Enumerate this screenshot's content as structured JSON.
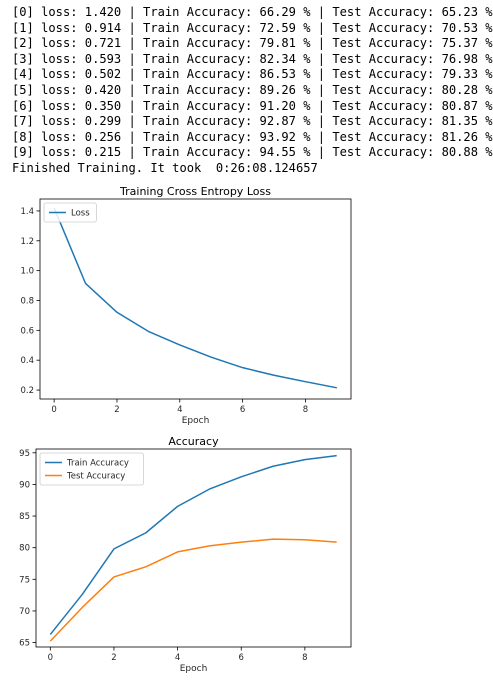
{
  "log": {
    "lines": [
      "[0] loss: 1.420 | Train Accuracy: 66.29 % | Test Accuracy: 65.23 %",
      "[1] loss: 0.914 | Train Accuracy: 72.59 % | Test Accuracy: 70.53 %",
      "[2] loss: 0.721 | Train Accuracy: 79.81 % | Test Accuracy: 75.37 %",
      "[3] loss: 0.593 | Train Accuracy: 82.34 % | Test Accuracy: 76.98 %",
      "[4] loss: 0.502 | Train Accuracy: 86.53 % | Test Accuracy: 79.33 %",
      "[5] loss: 0.420 | Train Accuracy: 89.26 % | Test Accuracy: 80.28 %",
      "[6] loss: 0.350 | Train Accuracy: 91.20 % | Test Accuracy: 80.87 %",
      "[7] loss: 0.299 | Train Accuracy: 92.87 % | Test Accuracy: 81.35 %",
      "[8] loss: 0.256 | Train Accuracy: 93.92 % | Test Accuracy: 81.26 %",
      "[9] loss: 0.215 | Train Accuracy: 94.55 % | Test Accuracy: 80.88 %",
      "Finished Training. It took  0:26:08.124657"
    ]
  },
  "chart_data": [
    {
      "type": "line",
      "title": "Training Cross Entropy Loss",
      "xlabel": "Epoch",
      "ylabel": "",
      "x": [
        0,
        1,
        2,
        3,
        4,
        5,
        6,
        7,
        8,
        9
      ],
      "xlim": [
        -0.45,
        9.45
      ],
      "ylim": [
        0.14,
        1.48
      ],
      "xticks": [
        0,
        2,
        4,
        6,
        8
      ],
      "yticks": [
        0.2,
        0.4,
        0.6,
        0.8,
        1.0,
        1.2,
        1.4
      ],
      "ytick_labels": [
        "0.2",
        "0.4",
        "0.6",
        "0.8",
        "1.0",
        "1.2",
        "1.4"
      ],
      "grid": false,
      "legend_position": "top-left",
      "series": [
        {
          "name": "Loss",
          "color": "#1f77b4",
          "values": [
            1.42,
            0.914,
            0.721,
            0.593,
            0.502,
            0.42,
            0.35,
            0.299,
            0.256,
            0.215
          ]
        }
      ]
    },
    {
      "type": "line",
      "title": "Accuracy",
      "xlabel": "Epoch",
      "ylabel": "",
      "x": [
        0,
        1,
        2,
        3,
        4,
        5,
        6,
        7,
        8,
        9
      ],
      "xlim": [
        -0.45,
        9.45
      ],
      "ylim": [
        64.3,
        95.6
      ],
      "xticks": [
        0,
        2,
        4,
        6,
        8
      ],
      "yticks": [
        65,
        70,
        75,
        80,
        85,
        90,
        95
      ],
      "ytick_labels": [
        "65",
        "70",
        "75",
        "80",
        "85",
        "90",
        "95"
      ],
      "grid": false,
      "legend_position": "top-left",
      "series": [
        {
          "name": "Train Accuracy",
          "color": "#1f77b4",
          "values": [
            66.29,
            72.59,
            79.81,
            82.34,
            86.53,
            89.26,
            91.2,
            92.87,
            93.92,
            94.55
          ]
        },
        {
          "name": "Test Accuracy",
          "color": "#ff7f0e",
          "values": [
            65.23,
            70.53,
            75.37,
            76.98,
            79.33,
            80.28,
            80.87,
            81.35,
            81.26,
            80.88
          ]
        }
      ]
    }
  ]
}
